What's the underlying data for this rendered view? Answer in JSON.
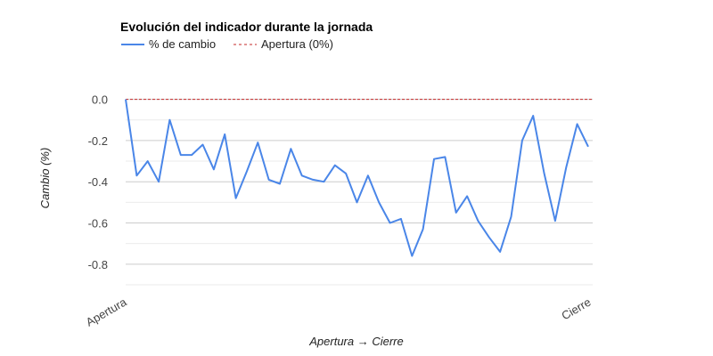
{
  "chart_data": {
    "type": "line",
    "title": "Evolución del indicador durante la jornada",
    "xlabel": "Apertura → Cierre",
    "ylabel": "Cambio (%)",
    "x_tick_labels": [
      "Apertura",
      "Cierre"
    ],
    "ylim": [
      -0.9,
      0.05
    ],
    "y_ticks": [
      0.0,
      -0.2,
      -0.4,
      -0.6,
      -0.8
    ],
    "y_tick_labels": [
      "0.0",
      "-0.2",
      "-0.4",
      "-0.6",
      "-0.8"
    ],
    "grid": true,
    "legend_position": "top-left",
    "series": [
      {
        "name": "% de cambio",
        "color": "#4a86e8",
        "values": [
          0.0,
          -0.37,
          -0.3,
          -0.4,
          -0.1,
          -0.27,
          -0.27,
          -0.22,
          -0.34,
          -0.17,
          -0.48,
          -0.35,
          -0.21,
          -0.39,
          -0.41,
          -0.24,
          -0.37,
          -0.39,
          -0.4,
          -0.32,
          -0.36,
          -0.5,
          -0.37,
          -0.5,
          -0.6,
          -0.58,
          -0.76,
          -0.63,
          -0.29,
          -0.28,
          -0.55,
          -0.47,
          -0.59,
          -0.67,
          -0.74,
          -0.57,
          -0.2,
          -0.08,
          -0.36,
          -0.59,
          -0.33,
          -0.12,
          -0.23
        ]
      }
    ],
    "reference_line": {
      "name": "Apertura (0%)",
      "value": 0.0,
      "color": "#c62828"
    }
  }
}
